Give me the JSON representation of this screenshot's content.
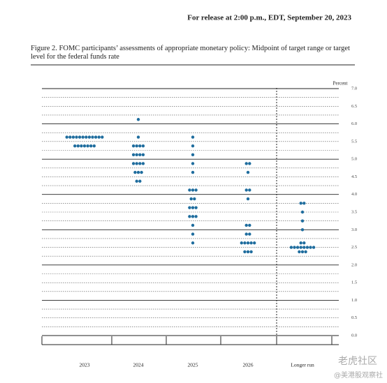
{
  "release": "For release at 2:00 p.m., EDT, September 20, 2023",
  "watermark": [
    "老虎社区",
    "@美港股观察社"
  ],
  "chart_data": {
    "type": "dot",
    "title": "Figure 2.  FOMC participants’ assessments of appropriate monetary policy:  Midpoint of target range or target level for the federal funds rate",
    "y_label": "Percent",
    "color": "#1f6d9e",
    "categories": [
      "2023",
      "2024",
      "2025",
      "2026",
      "Longer run"
    ],
    "values": [
      [
        5.625,
        5.625,
        5.625,
        5.625,
        5.625,
        5.625,
        5.625,
        5.625,
        5.625,
        5.625,
        5.625,
        5.625,
        5.375,
        5.375,
        5.375,
        5.375,
        5.375,
        5.375,
        5.375
      ],
      [
        6.125,
        5.625,
        5.375,
        5.375,
        5.375,
        5.375,
        5.125,
        5.125,
        5.125,
        5.125,
        4.875,
        4.875,
        4.875,
        4.875,
        4.625,
        4.625,
        4.625,
        4.375,
        4.375
      ],
      [
        5.625,
        5.375,
        5.125,
        4.875,
        4.625,
        4.125,
        4.125,
        4.125,
        3.875,
        3.875,
        3.625,
        3.625,
        3.625,
        3.375,
        3.375,
        3.375,
        3.125,
        2.875,
        2.625
      ],
      [
        4.875,
        4.875,
        4.625,
        4.125,
        4.125,
        3.875,
        3.125,
        3.125,
        2.875,
        2.875,
        2.625,
        2.625,
        2.625,
        2.625,
        2.625,
        2.375,
        2.375,
        2.375
      ],
      [
        3.75,
        3.75,
        3.5,
        3.25,
        3.0,
        2.625,
        2.625,
        2.5,
        2.5,
        2.5,
        2.5,
        2.5,
        2.5,
        2.5,
        2.5,
        2.375,
        2.375,
        2.375
      ]
    ],
    "ylim": [
      0,
      7.25
    ],
    "yticks": [
      {
        "value": 0,
        "label": "0.0"
      },
      {
        "value": 0.5,
        "label": "0.5"
      },
      {
        "value": 1,
        "label": "1.0"
      },
      {
        "value": 1.5,
        "label": "1.5"
      },
      {
        "value": 2,
        "label": "2.0"
      },
      {
        "value": 2.5,
        "label": "2.5"
      },
      {
        "value": 3,
        "label": "3.0"
      },
      {
        "value": 3.5,
        "label": "3.5"
      },
      {
        "value": 4,
        "label": "4.0"
      },
      {
        "value": 4.5,
        "label": "4.5"
      },
      {
        "value": 5,
        "label": "5.0"
      },
      {
        "value": 5.5,
        "label": "5.5"
      },
      {
        "value": 6,
        "label": "6.0"
      },
      {
        "value": 6.5,
        "label": "6.5"
      },
      {
        "value": 7,
        "label": "7.0"
      }
    ],
    "yminor": [
      0.25,
      0.75,
      1.25,
      1.75,
      2.25,
      2.75,
      3.25,
      3.75,
      4.25,
      4.75,
      5.25,
      5.75,
      6.25,
      6.75
    ],
    "grid": true
  }
}
